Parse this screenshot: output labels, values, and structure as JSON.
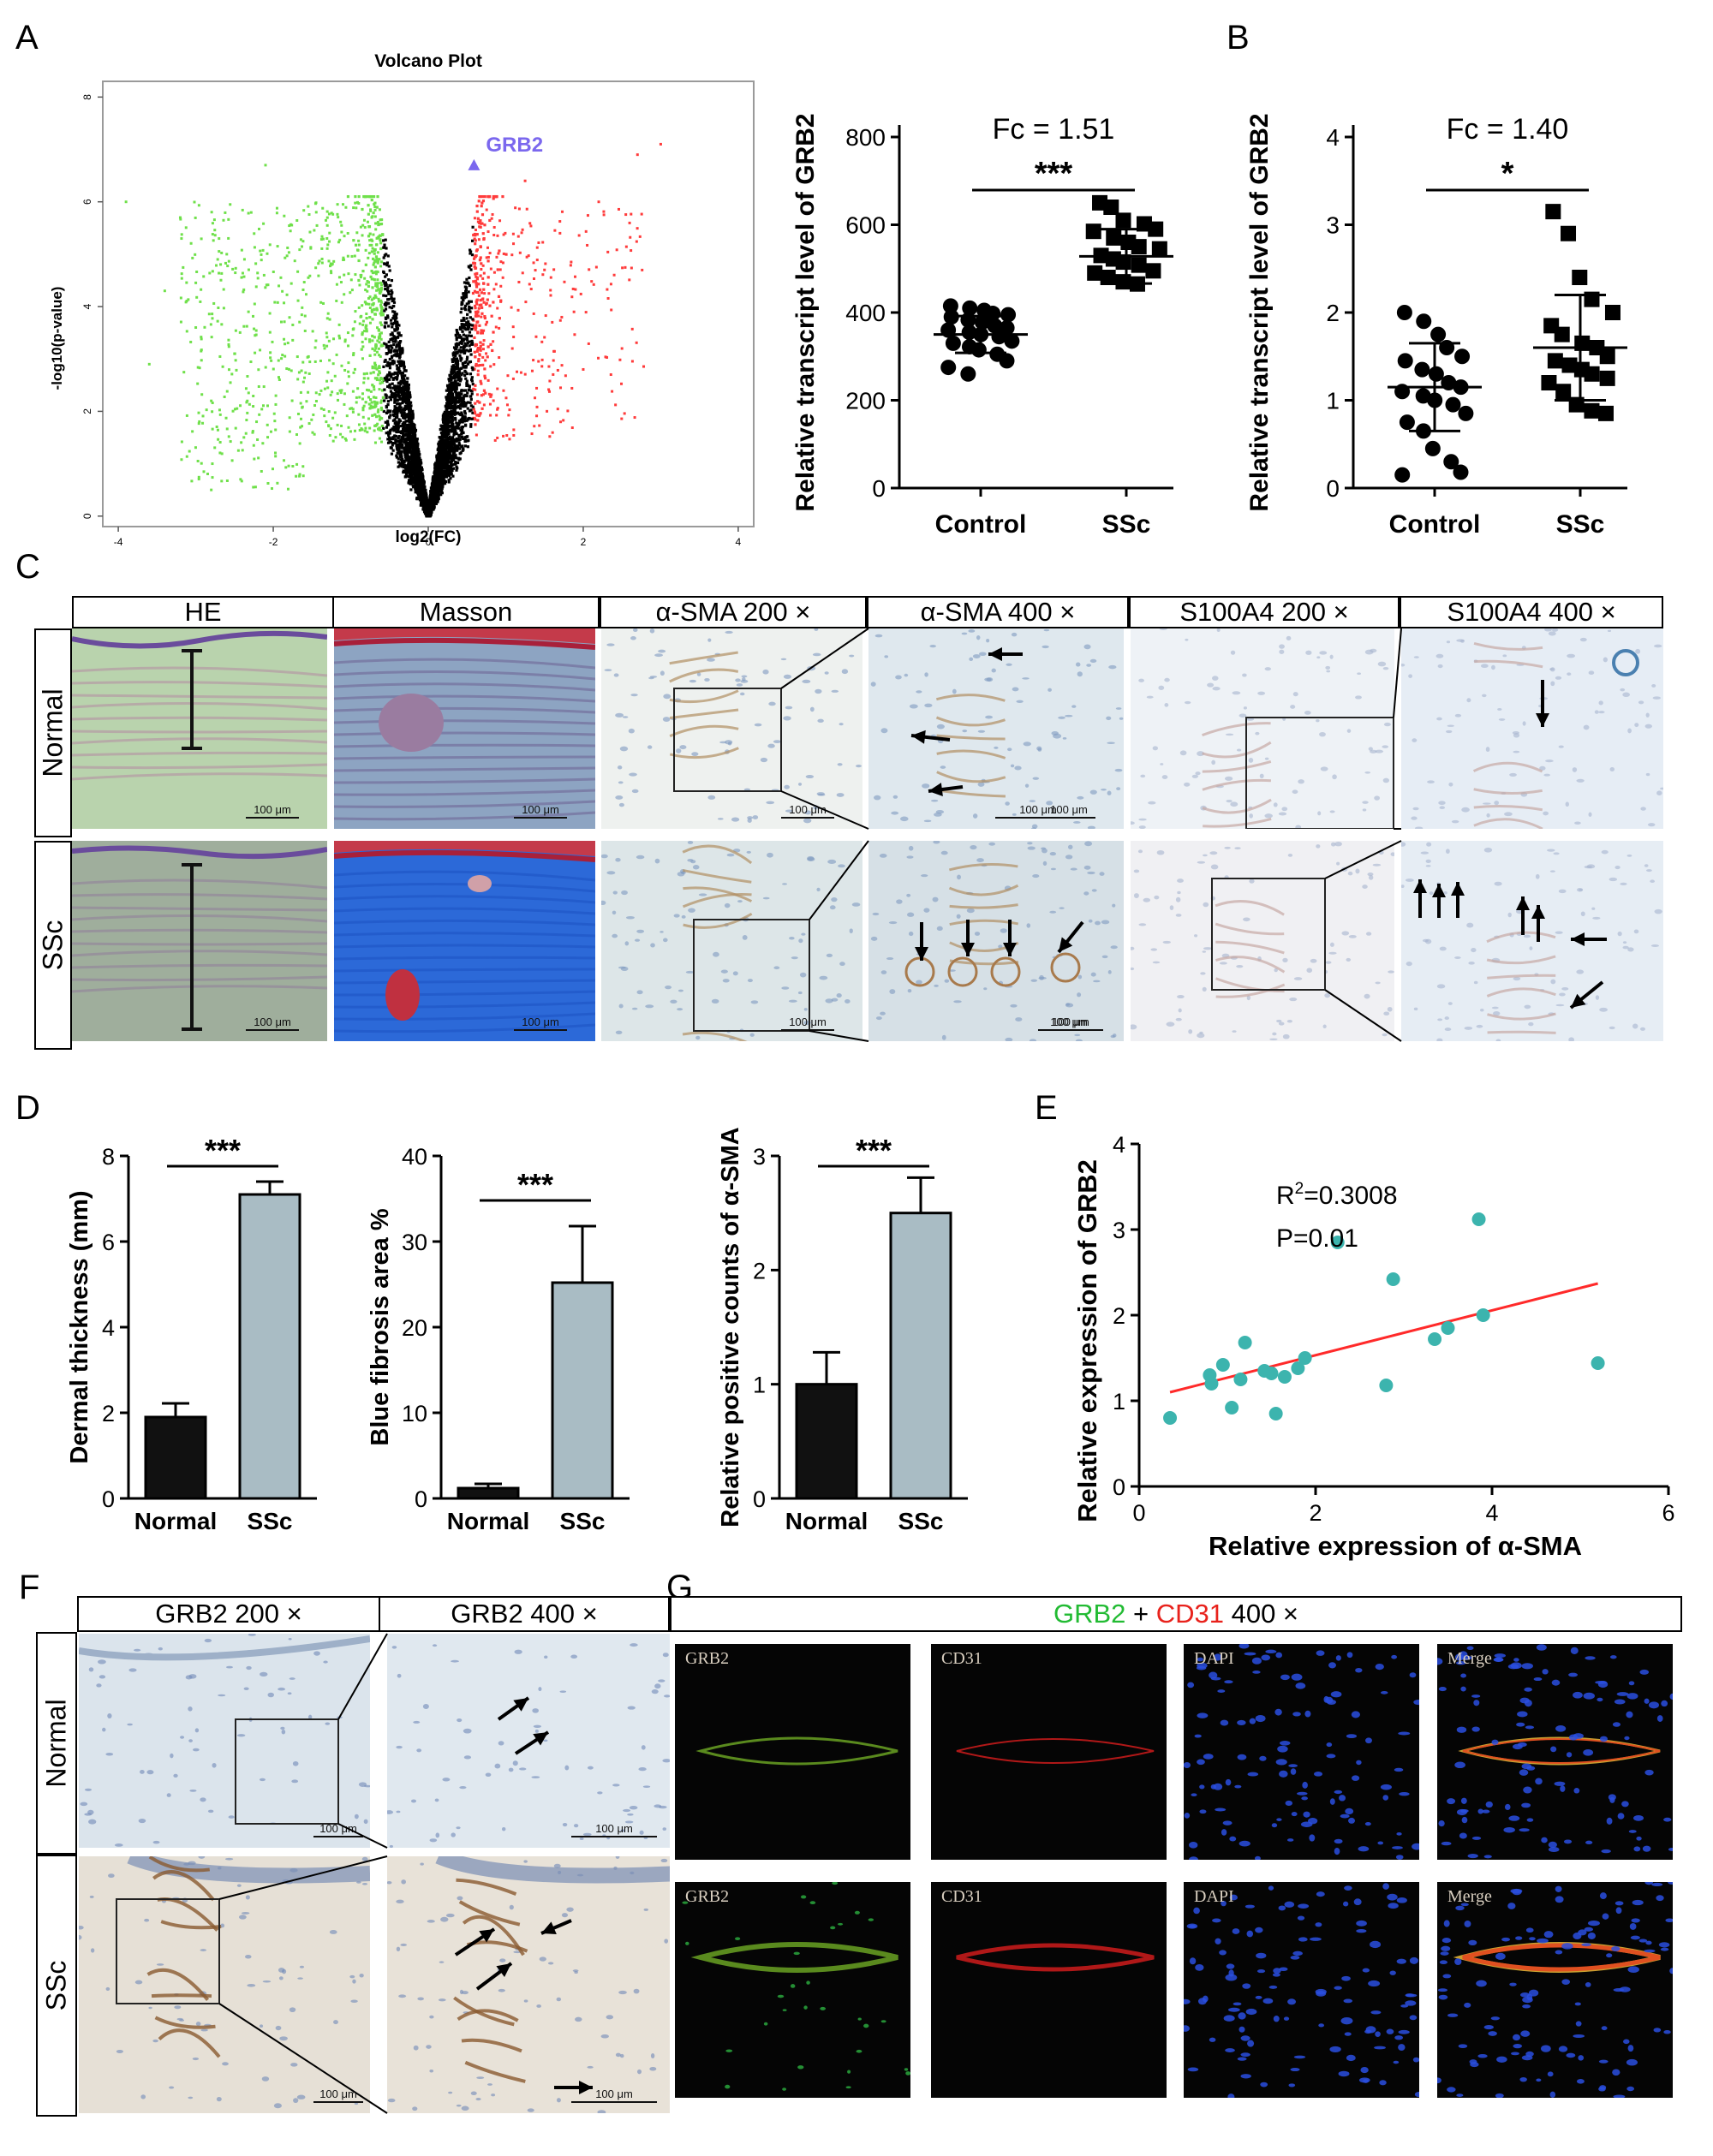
{
  "panels": {
    "A": "A",
    "B": "B",
    "C": "C",
    "D": "D",
    "E": "E",
    "F": "F",
    "G": "G"
  },
  "colors": {
    "up": "#ff3b3b",
    "down": "#6fe04a",
    "ns": "#000000",
    "highlight": "#7b68ee",
    "regression": "#ff2a2a",
    "scatter_e": "#3cb4ae",
    "bar_dark": "#111111",
    "bar_grey": "#a9bcc4",
    "grb2_green": "#22bb33",
    "cd31_red": "#e8221c"
  },
  "panelC": {
    "headers": [
      "HE",
      "Masson",
      "α-SMA 200 ×",
      "α-SMA 400 ×",
      "S100A4 200 ×",
      "S100A4 400 ×"
    ],
    "rows": [
      "Normal",
      "SSc"
    ],
    "scale": "100 μm"
  },
  "panelF": {
    "headers": [
      "GRB2 200 ×",
      "GRB2 400 ×"
    ],
    "rows": [
      "Normal",
      "SSc"
    ],
    "scale": "100 μm"
  },
  "panelG": {
    "title_parts": {
      "grb2": "GRB2",
      "plus": " + ",
      "cd31": "CD31",
      "mag": " 400 ×"
    },
    "channels": [
      "GRB2",
      "CD31",
      "DAPI",
      "Merge"
    ]
  },
  "chart_data": [
    {
      "id": "A-volcano",
      "type": "scatter",
      "title": "Volcano Plot",
      "xlabel": "log2(FC)",
      "ylabel": "-log10(p-value)",
      "xlim": [
        -4.2,
        4.2
      ],
      "ylim": [
        -0.2,
        8.3
      ],
      "xticks": [
        -4,
        -2,
        0,
        2,
        4
      ],
      "yticks": [
        0,
        2,
        4,
        6,
        8
      ],
      "highlight": {
        "label": "GRB2",
        "x": 0.59,
        "y": 6.7
      },
      "extra_points_up": [
        [
          3.0,
          7.1
        ],
        [
          2.7,
          6.9
        ],
        [
          2.2,
          6.0
        ],
        [
          1.7,
          5.4
        ],
        [
          2.5,
          3.2
        ],
        [
          1.6,
          3.7
        ],
        [
          1.25,
          6.4
        ],
        [
          1.5,
          4.7
        ],
        [
          2.0,
          2.8
        ],
        [
          1.1,
          5.2
        ]
      ],
      "extra_points_down": [
        [
          -3.9,
          6.0
        ],
        [
          -3.4,
          4.3
        ],
        [
          -3.2,
          5.7
        ],
        [
          -2.8,
          2.2
        ],
        [
          -2.5,
          3.1
        ],
        [
          -3.0,
          3.6
        ],
        [
          -2.1,
          6.7
        ],
        [
          -2.6,
          5.0
        ],
        [
          -3.6,
          2.9
        ]
      ]
    },
    {
      "id": "A-dotplot",
      "type": "scatter",
      "categories": [
        "Control",
        "SSc"
      ],
      "ylabel": "Relative transcript level of GRB2",
      "ylim": [
        0,
        800
      ],
      "yticks": [
        0,
        200,
        400,
        600,
        800
      ],
      "annotation": "Fc = 1.51",
      "significance": "***",
      "series": [
        {
          "name": "Control",
          "marker": "circle",
          "mean": 350,
          "sd": 42,
          "values": [
            415,
            410,
            405,
            398,
            395,
            390,
            383,
            378,
            370,
            365,
            360,
            355,
            350,
            345,
            335,
            330,
            322,
            315,
            305,
            290,
            275,
            260
          ]
        },
        {
          "name": "SSc",
          "marker": "square",
          "mean": 528,
          "sd": 62,
          "values": [
            650,
            640,
            610,
            602,
            590,
            585,
            570,
            560,
            550,
            545,
            530,
            522,
            515,
            508,
            495,
            490,
            480,
            470,
            465
          ]
        }
      ]
    },
    {
      "id": "B-dotplot",
      "type": "scatter",
      "categories": [
        "Control",
        "SSc"
      ],
      "ylabel": "Relative transcript level of GRB2",
      "ylim": [
        0,
        4
      ],
      "yticks": [
        0,
        1,
        2,
        3,
        4
      ],
      "annotation": "Fc = 1.40",
      "significance": "*",
      "series": [
        {
          "name": "Control",
          "marker": "circle",
          "mean": 1.15,
          "sd": 0.5,
          "values": [
            2.0,
            1.9,
            1.75,
            1.6,
            1.5,
            1.45,
            1.35,
            1.3,
            1.2,
            1.15,
            1.1,
            1.05,
            1.0,
            0.95,
            0.85,
            0.75,
            0.65,
            0.45,
            0.3,
            0.18,
            0.15
          ]
        },
        {
          "name": "SSc",
          "marker": "square",
          "mean": 1.6,
          "sd": 0.6,
          "values": [
            3.15,
            2.9,
            2.4,
            2.15,
            2.0,
            1.85,
            1.75,
            1.65,
            1.6,
            1.5,
            1.45,
            1.4,
            1.35,
            1.3,
            1.25,
            1.2,
            1.1,
            0.95,
            0.88,
            0.85
          ]
        }
      ]
    },
    {
      "id": "D-dermal",
      "type": "bar",
      "categories": [
        "Normal",
        "SSc"
      ],
      "values": [
        1.9,
        7.1
      ],
      "errors": [
        0.32,
        0.3
      ],
      "ylabel": "Dermal thickness (mm)",
      "ylim": [
        0,
        8
      ],
      "yticks": [
        0,
        2,
        4,
        6,
        8
      ],
      "significance": "***"
    },
    {
      "id": "D-fibrosis",
      "type": "bar",
      "categories": [
        "Normal",
        "SSc"
      ],
      "values": [
        1.2,
        25.2
      ],
      "errors": [
        0.5,
        6.6
      ],
      "ylabel": "Blue fibrosis area %",
      "ylim": [
        0,
        40
      ],
      "yticks": [
        0,
        10,
        20,
        30,
        40
      ],
      "significance": "***"
    },
    {
      "id": "D-asma",
      "type": "bar",
      "categories": [
        "Normal",
        "SSc"
      ],
      "values": [
        1.0,
        2.5
      ],
      "errors": [
        0.28,
        0.31
      ],
      "ylabel": "Relative positive counts of α-SMA",
      "ylim": [
        0,
        3
      ],
      "yticks": [
        0,
        1,
        2,
        3
      ],
      "significance": "***"
    },
    {
      "id": "E-correlation",
      "type": "scatter",
      "xlabel": "Relative expression of α-SMA",
      "ylabel": "Relative expression of GRB2",
      "xlim": [
        0,
        6
      ],
      "ylim": [
        0,
        4
      ],
      "xticks": [
        0,
        2,
        4,
        6
      ],
      "yticks": [
        0,
        1,
        2,
        3,
        4
      ],
      "r2_prefix": "R",
      "r2_sup": "2",
      "r2_value": "=0.3008",
      "p_text": "P=0.01",
      "points": [
        [
          0.35,
          0.8
        ],
        [
          0.8,
          1.3
        ],
        [
          0.82,
          1.2
        ],
        [
          0.95,
          1.42
        ],
        [
          1.05,
          0.92
        ],
        [
          1.15,
          1.25
        ],
        [
          1.2,
          1.68
        ],
        [
          1.42,
          1.35
        ],
        [
          1.5,
          1.32
        ],
        [
          1.55,
          0.85
        ],
        [
          1.65,
          1.28
        ],
        [
          1.8,
          1.38
        ],
        [
          1.88,
          1.5
        ],
        [
          2.25,
          2.85
        ],
        [
          2.8,
          1.18
        ],
        [
          2.88,
          2.42
        ],
        [
          3.35,
          1.72
        ],
        [
          3.5,
          1.85
        ],
        [
          3.85,
          3.12
        ],
        [
          3.9,
          2.0
        ],
        [
          5.2,
          1.44
        ]
      ],
      "fit": {
        "x": [
          0.35,
          5.2
        ],
        "y": [
          1.1,
          2.37
        ]
      }
    }
  ]
}
